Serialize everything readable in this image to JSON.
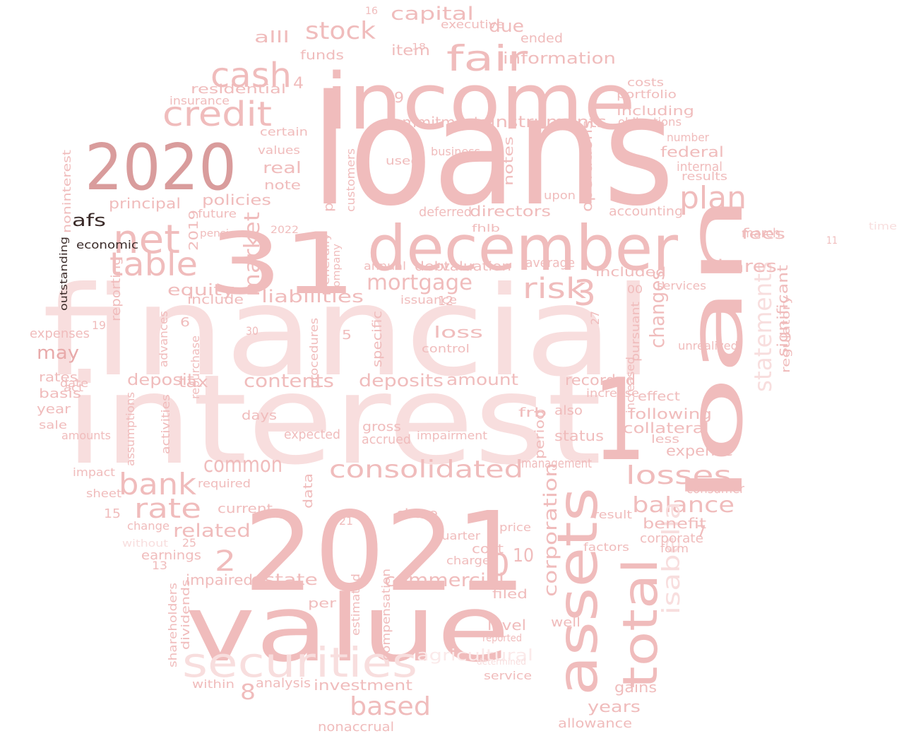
{
  "palette": {
    "pink": "#f0bcbc",
    "light_pink": "#f8dede",
    "pale_pink": "#fbeaea",
    "mid_pink": "#e8aaaa",
    "dark_pink": "#d99c9c",
    "dark_brown": "#3a2a28"
  },
  "words": [
    {
      "text": "loans",
      "color": "pink"
    },
    {
      "text": "interest",
      "color": "light_pink"
    },
    {
      "text": "financial",
      "color": "light_pink"
    },
    {
      "text": "2021",
      "color": "pink"
    },
    {
      "text": "value",
      "color": "pink"
    },
    {
      "text": "income",
      "color": "pink"
    },
    {
      "text": "31",
      "color": "pink"
    },
    {
      "text": "loan",
      "color": "pink"
    },
    {
      "text": "december",
      "color": "pink"
    },
    {
      "text": "2020",
      "color": "dark_pink"
    },
    {
      "text": "1",
      "color": "pink"
    },
    {
      "text": "assets",
      "color": "pink"
    },
    {
      "text": "total",
      "color": "pink"
    },
    {
      "text": "securities",
      "color": "light_pink"
    },
    {
      "text": "net",
      "color": "pink"
    },
    {
      "text": "credit",
      "color": "pink"
    },
    {
      "text": "cash",
      "color": "pink"
    },
    {
      "text": "fair",
      "color": "pink"
    },
    {
      "text": "table",
      "color": "pink"
    },
    {
      "text": "plan",
      "color": "pink"
    },
    {
      "text": "bank",
      "color": "pink"
    },
    {
      "text": "rate",
      "color": "pink"
    },
    {
      "text": "consolidated",
      "color": "pink"
    },
    {
      "text": "losses",
      "color": "pink"
    },
    {
      "text": "based",
      "color": "pink"
    },
    {
      "text": "stock",
      "color": "pink"
    },
    {
      "text": "risk",
      "color": "pink"
    },
    {
      "text": "3",
      "color": "pink"
    },
    {
      "text": "statements",
      "color": "light_pink"
    },
    {
      "text": "balance",
      "color": "pink"
    },
    {
      "text": "common",
      "color": "pink"
    },
    {
      "text": "mortgage",
      "color": "pink"
    },
    {
      "text": "market",
      "color": "pink"
    },
    {
      "text": "isabella",
      "color": "light_pink"
    },
    {
      "text": "may",
      "color": "mid_pink"
    },
    {
      "text": "capital",
      "color": "pink"
    },
    {
      "text": "commercial",
      "color": "pink"
    },
    {
      "text": "related",
      "color": "pink"
    },
    {
      "text": "contents",
      "color": "pink"
    },
    {
      "text": "liabilities",
      "color": "pink"
    },
    {
      "text": "deposits",
      "color": "pink"
    },
    {
      "text": "amount",
      "color": "pink"
    },
    {
      "text": "changes",
      "color": "pink"
    },
    {
      "text": "corporation",
      "color": "pink"
    },
    {
      "text": "information",
      "color": "pink"
    },
    {
      "text": "instruments",
      "color": "pink"
    },
    {
      "text": "commitments",
      "color": "pink"
    },
    {
      "text": "shares",
      "color": "pink"
    },
    {
      "text": "estate",
      "color": "pink"
    },
    {
      "text": "impaired",
      "color": "pink"
    },
    {
      "text": "investment",
      "color": "pink"
    },
    {
      "text": "years",
      "color": "pink"
    },
    {
      "text": "gains",
      "color": "pink"
    },
    {
      "text": "allowance",
      "color": "pink"
    },
    {
      "text": "nonaccrual",
      "color": "pink"
    },
    {
      "text": "agricultural",
      "color": "pale_pink"
    },
    {
      "text": "analysis",
      "color": "pink"
    },
    {
      "text": "following",
      "color": "pink"
    },
    {
      "text": "collateral",
      "color": "pink"
    },
    {
      "text": "expense",
      "color": "pink"
    },
    {
      "text": "consumer",
      "color": "pink"
    },
    {
      "text": "benefit",
      "color": "pink"
    },
    {
      "text": "corporate",
      "color": "pink"
    },
    {
      "text": "deposit",
      "color": "pink"
    },
    {
      "text": "tax",
      "color": "pink"
    },
    {
      "text": "equity",
      "color": "pink"
    },
    {
      "text": "residential",
      "color": "pink"
    },
    {
      "text": "principal",
      "color": "pink"
    },
    {
      "text": "afs",
      "color": "dark_brown"
    },
    {
      "text": "fees",
      "color": "pink"
    },
    {
      "text": "federal",
      "color": "pink"
    },
    {
      "text": "internal",
      "color": "pink"
    },
    {
      "text": "accounting",
      "color": "pink"
    },
    {
      "text": "including",
      "color": "pink"
    },
    {
      "text": "obligations",
      "color": "pink"
    },
    {
      "text": "portfolio",
      "color": "pink"
    },
    {
      "text": "costs",
      "color": "pink"
    },
    {
      "text": "due",
      "color": "pink"
    },
    {
      "text": "ended",
      "color": "pink"
    },
    {
      "text": "executive",
      "color": "pink"
    },
    {
      "text": "item",
      "color": "pink"
    },
    {
      "text": "funds",
      "color": "pink"
    },
    {
      "text": "alll",
      "color": "pink"
    },
    {
      "text": "policies",
      "color": "pink"
    },
    {
      "text": "real",
      "color": "pink"
    },
    {
      "text": "note",
      "color": "pink"
    },
    {
      "text": "values",
      "color": "pink"
    },
    {
      "text": "certain",
      "color": "pink"
    },
    {
      "text": "insurance",
      "color": "pink"
    },
    {
      "text": "directors",
      "color": "pink"
    },
    {
      "text": "deferred",
      "color": "pink"
    },
    {
      "text": "valuation",
      "color": "pink"
    },
    {
      "text": "debt",
      "color": "pink"
    },
    {
      "text": "loss",
      "color": "pink"
    },
    {
      "text": "control",
      "color": "pink"
    },
    {
      "text": "recorded",
      "color": "pink"
    },
    {
      "text": "increase",
      "color": "pink"
    },
    {
      "text": "status",
      "color": "pink"
    },
    {
      "text": "management",
      "color": "pink"
    },
    {
      "text": "average",
      "color": "pink"
    },
    {
      "text": "included",
      "color": "pink"
    },
    {
      "text": "services",
      "color": "pink"
    },
    {
      "text": "unrealized",
      "color": "pink"
    },
    {
      "text": "significant",
      "color": "pink"
    },
    {
      "text": "regulatory",
      "color": "pink"
    },
    {
      "text": "operations",
      "color": "pink"
    },
    {
      "text": "notes",
      "color": "pink"
    },
    {
      "text": "payment",
      "color": "pink"
    },
    {
      "text": "customers",
      "color": "pink"
    },
    {
      "text": "used",
      "color": "pink"
    },
    {
      "text": "business",
      "color": "pink"
    },
    {
      "text": "results",
      "color": "pink"
    },
    {
      "text": "number",
      "color": "pink"
    },
    {
      "text": "upon",
      "color": "pink"
    },
    {
      "text": "march",
      "color": "pink"
    },
    {
      "text": "pension",
      "color": "pink"
    },
    {
      "text": "future",
      "color": "pink"
    },
    {
      "text": "2019",
      "color": "pink"
    },
    {
      "text": "include",
      "color": "pink"
    },
    {
      "text": "reporting",
      "color": "pink"
    },
    {
      "text": "economic",
      "color": "dark_brown"
    },
    {
      "text": "noninterest",
      "color": "pink"
    },
    {
      "text": "outstanding",
      "color": "dark_brown"
    },
    {
      "text": "expenses",
      "color": "pink"
    },
    {
      "text": "rates",
      "color": "pink"
    },
    {
      "text": "basis",
      "color": "pink"
    },
    {
      "text": "year",
      "color": "pink"
    },
    {
      "text": "sale",
      "color": "pink"
    },
    {
      "text": "amounts",
      "color": "pink"
    },
    {
      "text": "impact",
      "color": "pink"
    },
    {
      "text": "sheet",
      "color": "pink"
    },
    {
      "text": "change",
      "color": "pink"
    },
    {
      "text": "earnings",
      "color": "pink"
    },
    {
      "text": "without",
      "color": "light_pink"
    },
    {
      "text": "current",
      "color": "pink"
    },
    {
      "text": "required",
      "color": "pink"
    },
    {
      "text": "share",
      "color": "pink"
    },
    {
      "text": "cost",
      "color": "pink"
    },
    {
      "text": "charge",
      "color": "pink"
    },
    {
      "text": "quarter",
      "color": "pink"
    },
    {
      "text": "price",
      "color": "pink"
    },
    {
      "text": "level",
      "color": "pink"
    },
    {
      "text": "filed",
      "color": "pink"
    },
    {
      "text": "well",
      "color": "pink"
    },
    {
      "text": "factors",
      "color": "pink"
    },
    {
      "text": "result",
      "color": "pink"
    },
    {
      "text": "form",
      "color": "pink"
    },
    {
      "text": "period",
      "color": "pink"
    },
    {
      "text": "accrued",
      "color": "pink"
    },
    {
      "text": "gross",
      "color": "pink"
    },
    {
      "text": "expected",
      "color": "pink"
    },
    {
      "text": "impairment",
      "color": "pink"
    },
    {
      "text": "days",
      "color": "pink"
    },
    {
      "text": "effect",
      "color": "pink"
    },
    {
      "text": "less",
      "color": "pink"
    },
    {
      "text": "also",
      "color": "pink"
    },
    {
      "text": "frb",
      "color": "pink"
    },
    {
      "text": "specific",
      "color": "pink"
    },
    {
      "text": "issuance",
      "color": "pink"
    },
    {
      "text": "repurchase",
      "color": "pink"
    },
    {
      "text": "assumptions",
      "color": "pink"
    },
    {
      "text": "activities",
      "color": "pink"
    },
    {
      "text": "advances",
      "color": "pink"
    },
    {
      "text": "date",
      "color": "pink"
    },
    {
      "text": "act",
      "color": "pink"
    },
    {
      "text": "data",
      "color": "pink"
    },
    {
      "text": "per",
      "color": "pink"
    },
    {
      "text": "dividends",
      "color": "pink"
    },
    {
      "text": "shareholders",
      "color": "pink"
    },
    {
      "text": "within",
      "color": "pink"
    },
    {
      "text": "compensation",
      "color": "pink"
    },
    {
      "text": "estimated",
      "color": "pink"
    },
    {
      "text": "service",
      "color": "pink"
    },
    {
      "text": "reported",
      "color": "pink"
    },
    {
      "text": "determined",
      "color": "light_pink"
    },
    {
      "text": "procedures",
      "color": "pink"
    },
    {
      "text": "annual",
      "color": "pink"
    },
    {
      "text": "fhlb",
      "color": "pink"
    },
    {
      "text": "pursuant",
      "color": "pink"
    },
    {
      "text": "increased",
      "color": "pink"
    },
    {
      "text": "generally",
      "color": "pink"
    },
    {
      "text": "company",
      "color": "pink"
    },
    {
      "text": "18",
      "color": "pink"
    },
    {
      "text": "9",
      "color": "pink"
    },
    {
      "text": "4",
      "color": "pink"
    },
    {
      "text": "5",
      "color": "pink"
    },
    {
      "text": "12",
      "color": "pink"
    },
    {
      "text": "2",
      "color": "pink"
    },
    {
      "text": "10",
      "color": "pink"
    },
    {
      "text": "15",
      "color": "pink"
    },
    {
      "text": "30",
      "color": "pink"
    },
    {
      "text": "19",
      "color": "pink"
    },
    {
      "text": "6",
      "color": "pink"
    },
    {
      "text": "8",
      "color": "pink"
    },
    {
      "text": "0",
      "color": "pink"
    },
    {
      "text": "7",
      "color": "pink"
    },
    {
      "text": "00",
      "color": "pink"
    },
    {
      "text": "13",
      "color": "pink"
    },
    {
      "text": "25",
      "color": "pink"
    },
    {
      "text": "21",
      "color": "pink"
    },
    {
      "text": "27",
      "color": "pink"
    },
    {
      "text": "11",
      "color": "pink"
    },
    {
      "text": "16",
      "color": "pink"
    },
    {
      "text": "2022",
      "color": "pink"
    },
    {
      "text": "time",
      "color": "light_pink"
    }
  ]
}
